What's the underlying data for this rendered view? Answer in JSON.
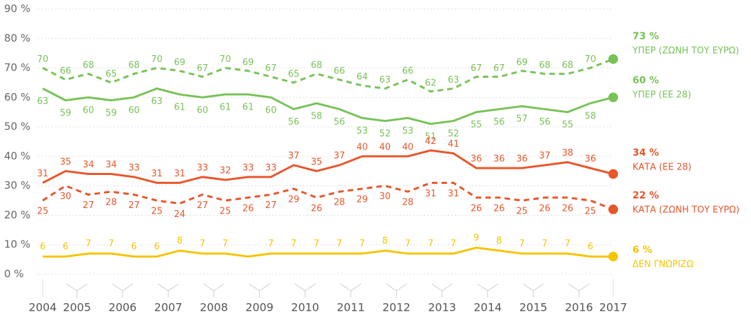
{
  "chart_data": {
    "type": "line",
    "categories": [
      "2004",
      "2005",
      null,
      "2006",
      null,
      "2007",
      null,
      "2008",
      null,
      "2009",
      null,
      "2010",
      null,
      "2011",
      null,
      "2012",
      null,
      "2013",
      null,
      "2014",
      null,
      "2015",
      null,
      "2016",
      null,
      "2017"
    ],
    "ylim": [
      0,
      90
    ],
    "yticks": [
      {
        "value": 0,
        "label": "0 %"
      },
      {
        "value": 10,
        "label": "10 %"
      },
      {
        "value": 20,
        "label": "20 %"
      },
      {
        "value": 30,
        "label": "30 %"
      },
      {
        "value": 40,
        "label": "40 %"
      },
      {
        "value": 50,
        "label": "50 %"
      },
      {
        "value": 60,
        "label": "60 %"
      },
      {
        "value": 70,
        "label": "70 %"
      },
      {
        "value": 80,
        "label": "80 %"
      },
      {
        "value": 90,
        "label": "90 %"
      }
    ],
    "grid": true,
    "series": [
      {
        "name": "ΥΠΕΡ (ΖΩΝΗ ΤΟΥ ΕΥΡΩ)",
        "color": "#78c257",
        "dash": true,
        "values": [
          70,
          66,
          68,
          65,
          68,
          70,
          69,
          67,
          70,
          69,
          67,
          65,
          68,
          66,
          64,
          63,
          66,
          62,
          63,
          67,
          67,
          69,
          68,
          68,
          70,
          73
        ],
        "value_labels": [
          "70",
          "66",
          "68",
          "65",
          "68",
          "70",
          "69",
          "67",
          "70",
          "69",
          "67",
          "65",
          "68",
          "66",
          "64",
          "63",
          "66",
          "62",
          "63",
          "67",
          "67",
          "69",
          "68",
          "68",
          "70",
          "73 %"
        ]
      },
      {
        "name": "ΥΠΕΡ (ΕΕ 28)",
        "color": "#78c257",
        "dash": false,
        "values": [
          63,
          59,
          60,
          59,
          60,
          63,
          61,
          60,
          61,
          61,
          60,
          56,
          58,
          56,
          53,
          52,
          53,
          51,
          52,
          55,
          56,
          57,
          56,
          55,
          58,
          60
        ],
        "value_labels": [
          "63",
          "59",
          "60",
          "59",
          "60",
          "63",
          "61",
          "60",
          "61",
          "61",
          "60",
          "56",
          "58",
          "56",
          "53",
          "52",
          "53",
          "51",
          "52",
          "55",
          "56",
          "57",
          "56",
          "55",
          "58",
          "60 %"
        ]
      },
      {
        "name": "ΚΑΤΑ (ΕΕ 28)",
        "color": "#e8562a",
        "dash": false,
        "values": [
          31,
          35,
          34,
          34,
          33,
          31,
          31,
          33,
          32,
          33,
          33,
          37,
          35,
          37,
          40,
          40,
          40,
          42,
          41,
          36,
          36,
          36,
          37,
          38,
          36,
          34
        ],
        "value_labels": [
          "31",
          "35",
          "34",
          "34",
          "33",
          "31",
          "31",
          "33",
          "32",
          "33",
          "33",
          "37",
          "35",
          "37",
          "40",
          "40",
          "40",
          "42",
          "41",
          "36",
          "36",
          "36",
          "37",
          "38",
          "36",
          "34 %"
        ]
      },
      {
        "name": "ΚΑΤΑ (ΖΩΝΗ ΤΟΥ ΕΥΡΩ)",
        "color": "#e8562a",
        "dash": true,
        "values": [
          25,
          30,
          27,
          28,
          27,
          25,
          24,
          27,
          25,
          26,
          27,
          29,
          26,
          28,
          29,
          30,
          28,
          31,
          31,
          26,
          26,
          25,
          26,
          26,
          25,
          22
        ],
        "value_labels": [
          "25",
          "30",
          "27",
          "28",
          "27",
          "25",
          "24",
          "27",
          "25",
          "26",
          "27",
          "29",
          "26",
          "28",
          "29",
          "30",
          "28",
          "31",
          "31",
          "26",
          "26",
          "25",
          "26",
          "26",
          "25",
          "22 %"
        ]
      },
      {
        "name": "ΔΕΝ ΓΝΩΡΙΖΩ",
        "color": "#f5c400",
        "dash": false,
        "values": [
          6,
          6,
          7,
          7,
          6,
          6,
          8,
          7,
          7,
          6,
          7,
          7,
          7,
          7,
          7,
          8,
          7,
          7,
          7,
          9,
          8,
          7,
          7,
          7,
          6,
          6
        ],
        "value_labels": [
          "6",
          "6",
          "7",
          "7",
          "6",
          "6",
          "8",
          "7",
          "7",
          null,
          "7",
          "7",
          "7",
          "7",
          "7",
          "8",
          "7",
          "7",
          "7",
          "9",
          "8",
          "7",
          "7",
          "7",
          "6",
          "6 %"
        ]
      }
    ]
  }
}
